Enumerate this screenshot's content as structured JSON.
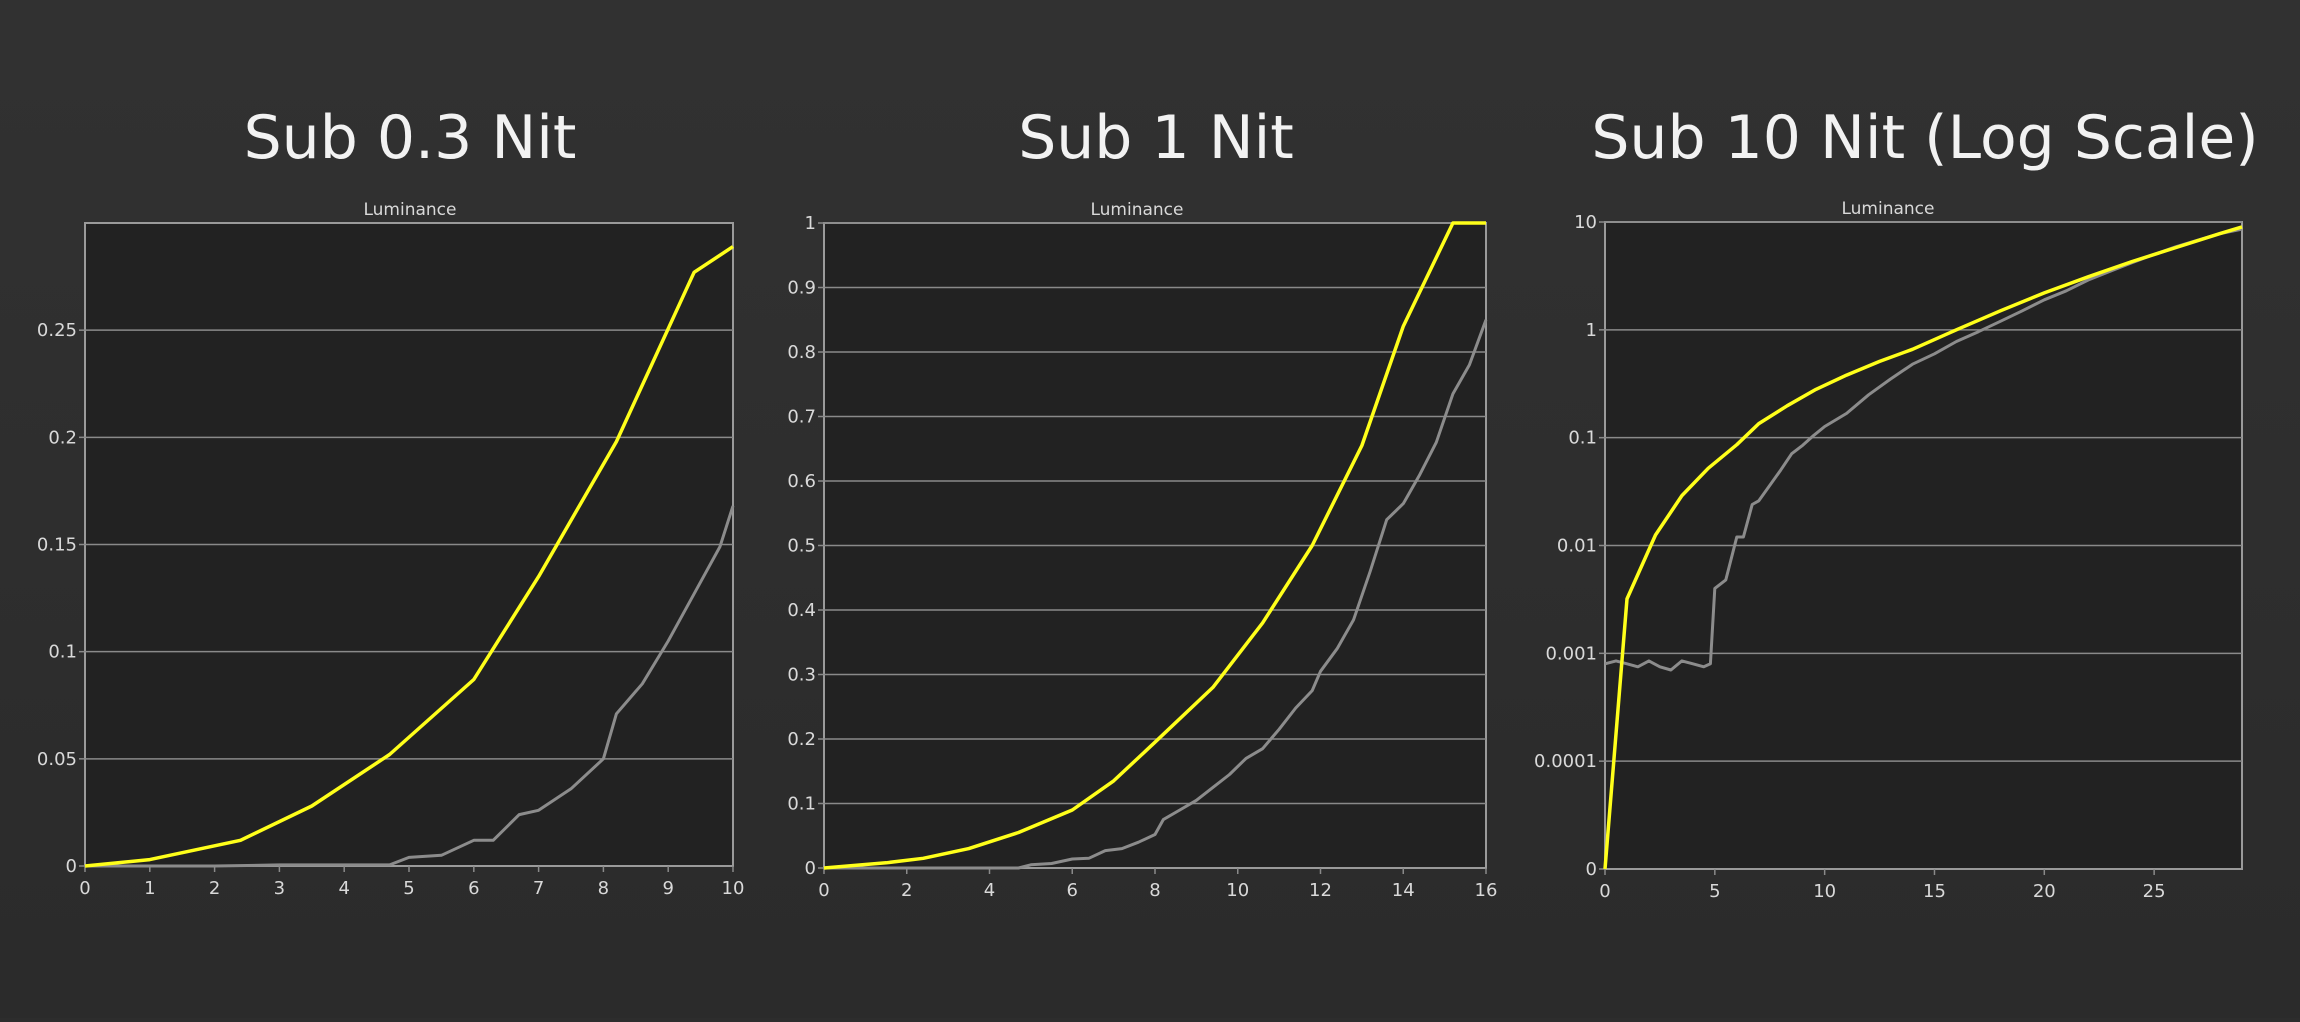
{
  "colors": {
    "background": "#2f2f2f",
    "plot_area": "#222222",
    "grid": "#8a8a8a",
    "axis_text": "#d9d9d9",
    "title_text": "#f2f2f2",
    "series_yellow": "#ffff1a",
    "series_gray": "#8c8c8c"
  },
  "chart_data": [
    {
      "type": "line",
      "title": "Sub 0.3 Nit",
      "subtitle": "Luminance",
      "xlim": [
        0,
        10
      ],
      "ylim": [
        0,
        0.3
      ],
      "xticks": [
        "0",
        "1",
        "2",
        "3",
        "4",
        "5",
        "6",
        "7",
        "8",
        "9",
        "10"
      ],
      "yticks": [
        "0",
        "0.05",
        "0.1",
        "0.15",
        "0.2",
        "0.25"
      ],
      "ytick_values": [
        0,
        0.05,
        0.1,
        0.15,
        0.2,
        0.25
      ],
      "grid": true,
      "series": [
        {
          "color": "yellow",
          "x": [
            0,
            1,
            2.4,
            3.5,
            4.7,
            6,
            7,
            8.2,
            9.4,
            10
          ],
          "y": [
            0,
            0.003,
            0.012,
            0.028,
            0.052,
            0.087,
            0.135,
            0.198,
            0.277,
            0.289
          ]
        },
        {
          "color": "gray",
          "x": [
            0,
            1,
            2,
            3,
            4,
            4.7,
            5,
            5.5,
            6,
            6.3,
            6.7,
            7,
            7.5,
            8,
            8.2,
            8.6,
            9,
            9.4,
            9.8,
            10
          ],
          "y": [
            0,
            0,
            0,
            0.0005,
            0.0005,
            0.0005,
            0.004,
            0.005,
            0.012,
            0.012,
            0.024,
            0.026,
            0.036,
            0.05,
            0.071,
            0.085,
            0.105,
            0.127,
            0.149,
            0.168
          ]
        }
      ]
    },
    {
      "type": "line",
      "title": "Sub 1 Nit",
      "subtitle": "Luminance",
      "xlim": [
        0,
        16
      ],
      "ylim": [
        0,
        1
      ],
      "xticks": [
        "0",
        "2",
        "4",
        "6",
        "8",
        "10",
        "12",
        "14",
        "16"
      ],
      "yticks": [
        "0",
        "0.1",
        "0.2",
        "0.3",
        "0.4",
        "0.5",
        "0.6",
        "0.7",
        "0.8",
        "0.9",
        "1"
      ],
      "ytick_values": [
        0,
        0.1,
        0.2,
        0.3,
        0.4,
        0.5,
        0.6,
        0.7,
        0.8,
        0.9,
        1
      ],
      "grid": true,
      "series": [
        {
          "color": "yellow",
          "x": [
            0,
            1.5,
            2.4,
            3.5,
            4.7,
            6,
            7,
            8,
            9.4,
            10.6,
            11.8,
            13,
            14,
            15.2,
            16
          ],
          "y": [
            0,
            0.008,
            0.015,
            0.03,
            0.055,
            0.09,
            0.135,
            0.195,
            0.28,
            0.38,
            0.5,
            0.655,
            0.84,
            1.0,
            1.0
          ]
        },
        {
          "color": "gray",
          "x": [
            0,
            3,
            4.7,
            5,
            5.5,
            6,
            6.4,
            6.8,
            7.2,
            7.6,
            8,
            8.2,
            8.6,
            9,
            9.4,
            9.8,
            10.2,
            10.6,
            11,
            11.4,
            11.8,
            12,
            12.4,
            12.8,
            13.2,
            13.6,
            14,
            14.4,
            14.8,
            15.2,
            15.6,
            16
          ],
          "y": [
            0,
            0,
            0,
            0.005,
            0.007,
            0.014,
            0.015,
            0.027,
            0.03,
            0.04,
            0.052,
            0.075,
            0.09,
            0.105,
            0.125,
            0.145,
            0.17,
            0.185,
            0.215,
            0.248,
            0.275,
            0.305,
            0.34,
            0.385,
            0.46,
            0.54,
            0.565,
            0.61,
            0.66,
            0.735,
            0.78,
            0.85
          ]
        }
      ]
    },
    {
      "type": "line",
      "title": "Sub 10 Nit (Log Scale)",
      "subtitle": "Luminance",
      "xlim": [
        0,
        29
      ],
      "ylim": [
        0,
        10
      ],
      "yscale": "log",
      "xticks": [
        "0",
        "5",
        "10",
        "15",
        "20",
        "25"
      ],
      "yticks": [
        "0",
        "0.0001",
        "0.001",
        "0.01",
        "0.1",
        "1",
        "10"
      ],
      "ytick_values": [
        0,
        0.0001,
        0.001,
        0.01,
        0.1,
        1,
        10
      ],
      "grid": true,
      "series": [
        {
          "color": "yellow",
          "x": [
            0,
            1,
            2.3,
            3.5,
            4.7,
            6,
            7,
            8.3,
            9.6,
            11,
            12.5,
            14,
            16,
            18,
            20,
            22,
            24,
            26,
            28,
            29
          ],
          "y": [
            0,
            0.0032,
            0.0125,
            0.029,
            0.052,
            0.086,
            0.135,
            0.198,
            0.28,
            0.38,
            0.51,
            0.66,
            1.0,
            1.5,
            2.2,
            3.1,
            4.3,
            5.8,
            7.8,
            9.0
          ]
        },
        {
          "color": "gray",
          "x": [
            0,
            0.5,
            1,
            1.5,
            2,
            2.5,
            3,
            3.5,
            4,
            4.5,
            4.8,
            5,
            5.5,
            6,
            6.3,
            6.7,
            7,
            7.5,
            8,
            8.5,
            9,
            9.5,
            10,
            11,
            12,
            13,
            14,
            15,
            16,
            17,
            18,
            19,
            20,
            21,
            22,
            23,
            24,
            25,
            26,
            27,
            28,
            29
          ],
          "y": [
            0.0008,
            0.00085,
            0.0008,
            0.00075,
            0.00085,
            0.00075,
            0.0007,
            0.00085,
            0.0008,
            0.00075,
            0.0008,
            0.004,
            0.0048,
            0.012,
            0.012,
            0.024,
            0.026,
            0.036,
            0.05,
            0.071,
            0.085,
            0.105,
            0.127,
            0.168,
            0.25,
            0.35,
            0.48,
            0.6,
            0.78,
            0.96,
            1.2,
            1.5,
            1.9,
            2.3,
            2.9,
            3.5,
            4.2,
            5.0,
            5.9,
            6.8,
            7.8,
            8.6
          ]
        }
      ]
    }
  ]
}
